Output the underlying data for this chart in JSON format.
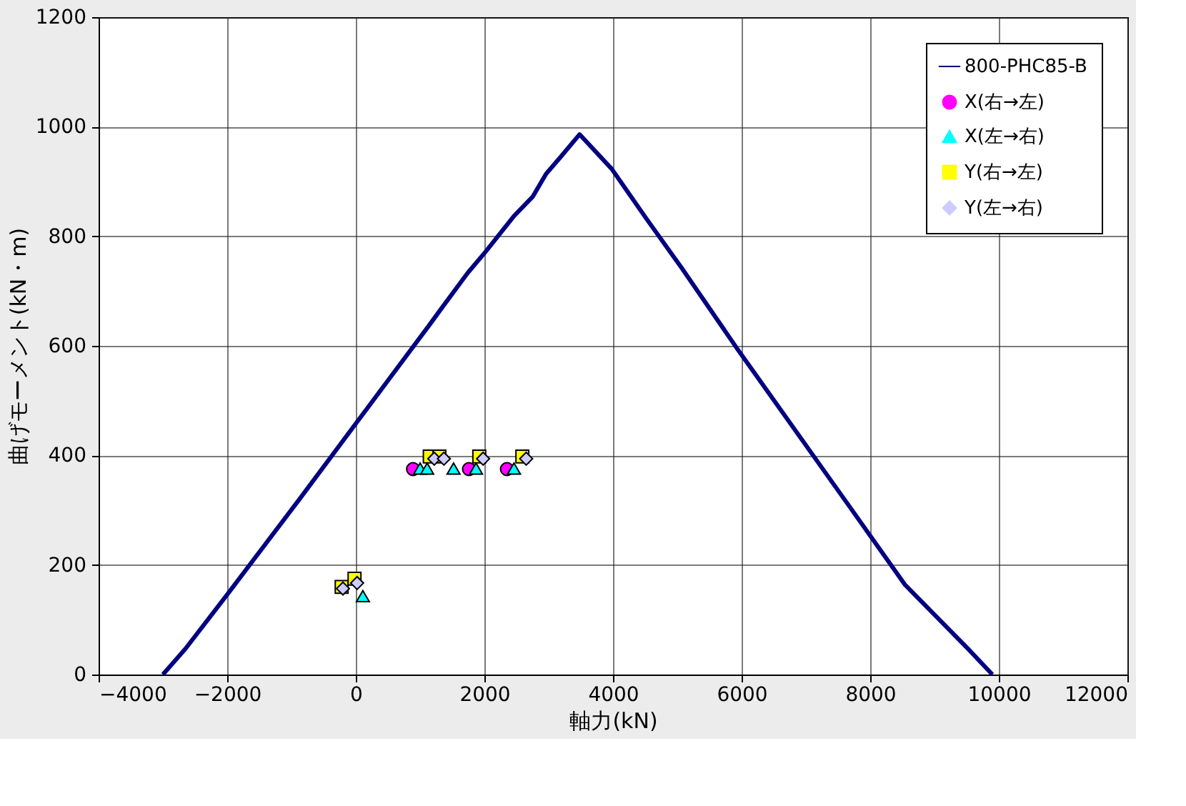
{
  "chart_data": {
    "type": "line",
    "xlabel": "軸力(kN)",
    "ylabel": "曲げモーメント(kN・m)",
    "xlim": [
      -4000,
      12000
    ],
    "xticks": [
      -4000,
      -2000,
      0,
      2000,
      4000,
      6000,
      8000,
      10000,
      12000
    ],
    "ylim": [
      0,
      1200
    ],
    "yticks": [
      0,
      200,
      400,
      600,
      800,
      1000,
      1200
    ],
    "grid": true,
    "legend": "top right",
    "series": [
      {
        "name": "800-PHC85-B",
        "color": "#000080",
        "marker": "none",
        "x": [
          -3000,
          -2650,
          -2000,
          -870,
          1150,
          1330,
          1740,
          2020,
          2460,
          2750,
          2960,
          3180,
          3480,
          3980,
          4520,
          5070,
          5930,
          7670,
          8540,
          9520,
          9900
        ],
        "values": [
          0,
          47,
          146,
          321,
          639,
          668,
          733,
          772,
          837,
          872,
          914,
          944,
          986,
          923,
          832,
          742,
          595,
          308,
          164,
          47,
          0
        ]
      },
      {
        "name": "X(右→左)",
        "type": "scatter",
        "color": "#ff00ff",
        "marker": "circle",
        "x": [
          890,
          1760,
          2350
        ],
        "values": [
          375,
          375,
          375
        ]
      },
      {
        "name": "X(左→右)",
        "type": "scatter",
        "color": "#00ffff",
        "marker": "triangle",
        "x": [
          110,
          1000,
          1110,
          1520,
          1870,
          2460
        ],
        "values": [
          143,
          376,
          376,
          376,
          376,
          376
        ]
      },
      {
        "name": "Y(右→左)",
        "type": "scatter",
        "color": "#ffff00",
        "marker": "square",
        "x": [
          -220,
          -20,
          1150,
          1300,
          1920,
          2590
        ],
        "values": [
          160,
          175,
          398,
          398,
          398,
          398
        ]
      },
      {
        "name": "Y(左→右)",
        "type": "scatter",
        "color": "#ccccff",
        "marker": "diamond",
        "x": [
          -200,
          20,
          1220,
          1370,
          1980,
          2650
        ],
        "values": [
          157,
          167,
          394,
          394,
          394,
          394
        ]
      }
    ]
  }
}
